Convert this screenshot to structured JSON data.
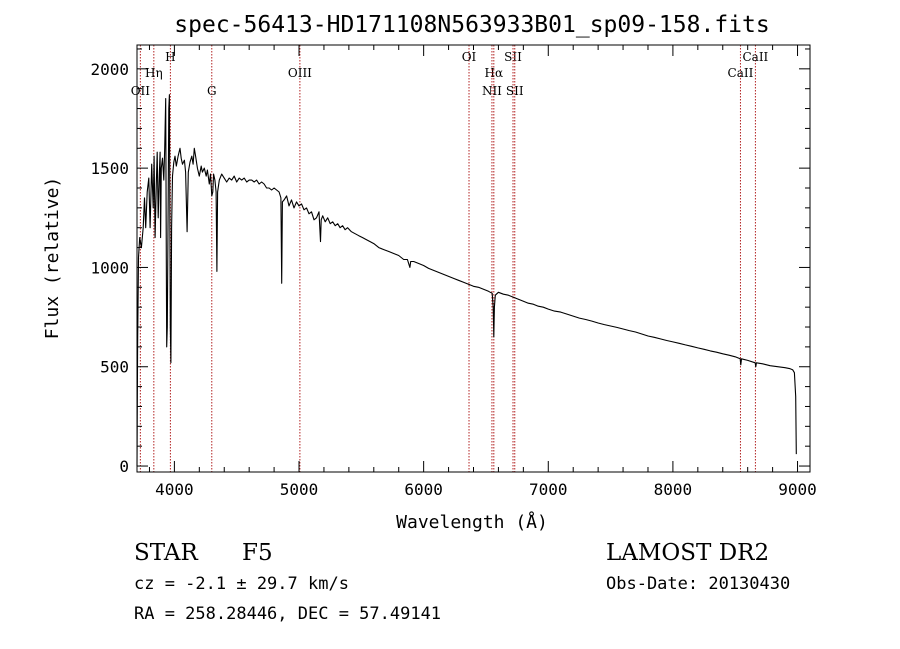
{
  "chart_data": {
    "type": "line",
    "title": "spec-56413-HD171108N563933B01_sp09-158.fits",
    "xlabel": "Wavelength (Å)",
    "ylabel": "Flux (relative)",
    "xlim": [
      3700,
      9100
    ],
    "ylim": [
      -30,
      2120
    ],
    "x_ticks": [
      4000,
      5000,
      6000,
      7000,
      8000,
      9000
    ],
    "y_ticks": [
      0,
      500,
      1000,
      1500,
      2000
    ],
    "line_color": "#000000",
    "marker_color": "#b22222",
    "series": [
      {
        "name": "flux",
        "points": [
          [
            3700,
            0
          ],
          [
            3705,
            600
          ],
          [
            3712,
            1050
          ],
          [
            3722,
            1150
          ],
          [
            3735,
            1100
          ],
          [
            3750,
            1200
          ],
          [
            3760,
            1350
          ],
          [
            3770,
            1200
          ],
          [
            3782,
            1380
          ],
          [
            3795,
            1450
          ],
          [
            3805,
            1200
          ],
          [
            3818,
            1520
          ],
          [
            3830,
            1300
          ],
          [
            3837,
            1560
          ],
          [
            3845,
            1150
          ],
          [
            3855,
            1420
          ],
          [
            3862,
            1580
          ],
          [
            3870,
            1250
          ],
          [
            3880,
            1480
          ],
          [
            3885,
            1580
          ],
          [
            3889,
            1150
          ],
          [
            3895,
            1500
          ],
          [
            3905,
            1550
          ],
          [
            3915,
            1440
          ],
          [
            3922,
            1600
          ],
          [
            3930,
            1850
          ],
          [
            3935,
            1050
          ],
          [
            3938,
            600
          ],
          [
            3943,
            700
          ],
          [
            3950,
            1350
          ],
          [
            3955,
            1800
          ],
          [
            3960,
            1870
          ],
          [
            3967,
            700
          ],
          [
            3972,
            520
          ],
          [
            3978,
            1200
          ],
          [
            3985,
            1460
          ],
          [
            3995,
            1530
          ],
          [
            4005,
            1560
          ],
          [
            4015,
            1510
          ],
          [
            4030,
            1560
          ],
          [
            4045,
            1600
          ],
          [
            4055,
            1550
          ],
          [
            4065,
            1520
          ],
          [
            4080,
            1540
          ],
          [
            4090,
            1480
          ],
          [
            4102,
            1180
          ],
          [
            4112,
            1480
          ],
          [
            4125,
            1530
          ],
          [
            4140,
            1560
          ],
          [
            4150,
            1520
          ],
          [
            4160,
            1600
          ],
          [
            4170,
            1560
          ],
          [
            4185,
            1500
          ],
          [
            4200,
            1460
          ],
          [
            4215,
            1510
          ],
          [
            4225,
            1480
          ],
          [
            4240,
            1500
          ],
          [
            4255,
            1460
          ],
          [
            4265,
            1490
          ],
          [
            4280,
            1420
          ],
          [
            4290,
            1470
          ],
          [
            4300,
            1360
          ],
          [
            4308,
            1380
          ],
          [
            4315,
            1470
          ],
          [
            4325,
            1440
          ],
          [
            4335,
            1380
          ],
          [
            4341,
            980
          ],
          [
            4347,
            1380
          ],
          [
            4360,
            1440
          ],
          [
            4380,
            1470
          ],
          [
            4400,
            1450
          ],
          [
            4420,
            1430
          ],
          [
            4440,
            1450
          ],
          [
            4460,
            1440
          ],
          [
            4480,
            1460
          ],
          [
            4500,
            1430
          ],
          [
            4520,
            1450
          ],
          [
            4540,
            1440
          ],
          [
            4560,
            1450
          ],
          [
            4580,
            1430
          ],
          [
            4600,
            1440
          ],
          [
            4620,
            1440
          ],
          [
            4640,
            1430
          ],
          [
            4660,
            1440
          ],
          [
            4680,
            1420
          ],
          [
            4700,
            1430
          ],
          [
            4720,
            1420
          ],
          [
            4740,
            1400
          ],
          [
            4760,
            1400
          ],
          [
            4780,
            1390
          ],
          [
            4800,
            1400
          ],
          [
            4820,
            1390
          ],
          [
            4840,
            1380
          ],
          [
            4855,
            1350
          ],
          [
            4861,
            920
          ],
          [
            4867,
            1330
          ],
          [
            4880,
            1340
          ],
          [
            4900,
            1360
          ],
          [
            4920,
            1310
          ],
          [
            4940,
            1340
          ],
          [
            4960,
            1300
          ],
          [
            4980,
            1330
          ],
          [
            5000,
            1310
          ],
          [
            5020,
            1320
          ],
          [
            5040,
            1290
          ],
          [
            5060,
            1300
          ],
          [
            5080,
            1270
          ],
          [
            5100,
            1280
          ],
          [
            5120,
            1240
          ],
          [
            5140,
            1250
          ],
          [
            5160,
            1280
          ],
          [
            5172,
            1130
          ],
          [
            5178,
            1240
          ],
          [
            5190,
            1260
          ],
          [
            5210,
            1230
          ],
          [
            5230,
            1250
          ],
          [
            5250,
            1220
          ],
          [
            5270,
            1230
          ],
          [
            5290,
            1210
          ],
          [
            5310,
            1220
          ],
          [
            5330,
            1200
          ],
          [
            5350,
            1210
          ],
          [
            5370,
            1190
          ],
          [
            5390,
            1200
          ],
          [
            5420,
            1180
          ],
          [
            5450,
            1170
          ],
          [
            5480,
            1160
          ],
          [
            5510,
            1150
          ],
          [
            5540,
            1140
          ],
          [
            5570,
            1130
          ],
          [
            5600,
            1120
          ],
          [
            5640,
            1100
          ],
          [
            5680,
            1090
          ],
          [
            5720,
            1080
          ],
          [
            5760,
            1070
          ],
          [
            5800,
            1060
          ],
          [
            5840,
            1040
          ],
          [
            5870,
            1040
          ],
          [
            5890,
            1000
          ],
          [
            5896,
            1030
          ],
          [
            5920,
            1030
          ],
          [
            5960,
            1020
          ],
          [
            6000,
            1010
          ],
          [
            6040,
            995
          ],
          [
            6080,
            985
          ],
          [
            6120,
            975
          ],
          [
            6160,
            965
          ],
          [
            6200,
            955
          ],
          [
            6240,
            945
          ],
          [
            6280,
            935
          ],
          [
            6320,
            925
          ],
          [
            6360,
            915
          ],
          [
            6400,
            905
          ],
          [
            6440,
            900
          ],
          [
            6480,
            890
          ],
          [
            6520,
            880
          ],
          [
            6550,
            870
          ],
          [
            6558,
            800
          ],
          [
            6563,
            650
          ],
          [
            6568,
            800
          ],
          [
            6575,
            860
          ],
          [
            6600,
            875
          ],
          [
            6640,
            865
          ],
          [
            6680,
            860
          ],
          [
            6720,
            850
          ],
          [
            6760,
            840
          ],
          [
            6800,
            830
          ],
          [
            6840,
            820
          ],
          [
            6880,
            815
          ],
          [
            6920,
            805
          ],
          [
            6960,
            800
          ],
          [
            7000,
            790
          ],
          [
            7050,
            780
          ],
          [
            7100,
            775
          ],
          [
            7150,
            765
          ],
          [
            7200,
            755
          ],
          [
            7250,
            745
          ],
          [
            7300,
            738
          ],
          [
            7350,
            730
          ],
          [
            7400,
            720
          ],
          [
            7450,
            712
          ],
          [
            7500,
            705
          ],
          [
            7550,
            698
          ],
          [
            7600,
            690
          ],
          [
            7650,
            682
          ],
          [
            7700,
            675
          ],
          [
            7750,
            665
          ],
          [
            7800,
            655
          ],
          [
            7850,
            648
          ],
          [
            7900,
            640
          ],
          [
            7950,
            632
          ],
          [
            8000,
            625
          ],
          [
            8050,
            618
          ],
          [
            8100,
            610
          ],
          [
            8150,
            603
          ],
          [
            8200,
            595
          ],
          [
            8250,
            588
          ],
          [
            8300,
            580
          ],
          [
            8350,
            573
          ],
          [
            8400,
            565
          ],
          [
            8450,
            558
          ],
          [
            8500,
            550
          ],
          [
            8540,
            540
          ],
          [
            8545,
            510
          ],
          [
            8550,
            540
          ],
          [
            8600,
            532
          ],
          [
            8660,
            520
          ],
          [
            8665,
            500
          ],
          [
            8670,
            520
          ],
          [
            8720,
            515
          ],
          [
            8780,
            505
          ],
          [
            8840,
            500
          ],
          [
            8900,
            495
          ],
          [
            8940,
            490
          ],
          [
            8960,
            485
          ],
          [
            8975,
            470
          ],
          [
            8985,
            350
          ],
          [
            8990,
            60
          ]
        ]
      }
    ],
    "line_markers": [
      {
        "label": "OII",
        "wavelength": 3727,
        "label_row": 3
      },
      {
        "label": "Hη",
        "wavelength": 3835,
        "label_row": 2
      },
      {
        "label": "H",
        "wavelength": 3968,
        "label_row": 1
      },
      {
        "label": "G",
        "wavelength": 4300,
        "label_row": 3
      },
      {
        "label": "OIII",
        "wavelength": 5007,
        "label_row": 2
      },
      {
        "label": "OI",
        "wavelength": 6364,
        "label_row": 1
      },
      {
        "label": "Hα",
        "wavelength": 6563,
        "label_row": 2
      },
      {
        "label": "NII",
        "wavelength": 6548,
        "label_row": 3
      },
      {
        "label": "SII",
        "wavelength": 6717,
        "label_row": 1
      },
      {
        "label": "SII",
        "wavelength": 6731,
        "label_row": 3
      },
      {
        "label": "CaII",
        "wavelength": 8542,
        "label_row": 2
      },
      {
        "label": "CaII",
        "wavelength": 8662,
        "label_row": 1
      }
    ]
  },
  "info": {
    "class_label": "STAR",
    "subclass": "F5",
    "survey": "LAMOST DR2",
    "cz": "cz = -2.1 ± 29.7 km/s",
    "obs_date": "Obs-Date: 20130430",
    "coords": "RA = 258.28446, DEC =  57.49141"
  }
}
